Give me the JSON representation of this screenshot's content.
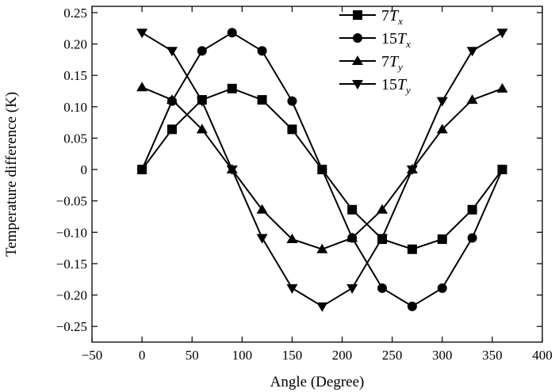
{
  "chart_data": {
    "type": "line",
    "title": "",
    "xlabel": "Angle (Degree)",
    "ylabel": "Temperature difference (K)",
    "xlim": [
      -50,
      400
    ],
    "ylim": [
      -0.275,
      0.26
    ],
    "x_ticks": [
      -50,
      0,
      50,
      100,
      150,
      200,
      250,
      300,
      350,
      400
    ],
    "y_ticks": [
      0.25,
      0.2,
      0.15,
      0.1,
      0.05,
      0,
      -0.05,
      -0.1,
      -0.15,
      -0.2,
      -0.25
    ],
    "x_tick_labels": [
      "−50",
      "0",
      "50",
      "100",
      "150",
      "200",
      "250",
      "300",
      "350",
      "400"
    ],
    "y_tick_labels": [
      "0.25",
      "0.20",
      "0.15",
      "0.10",
      "0.05",
      "0",
      "−0.05",
      "−0.10",
      "−0.15",
      "−0.20",
      "−0.25"
    ],
    "grid": false,
    "legend_position": "top-right",
    "x": [
      0,
      30,
      60,
      90,
      120,
      150,
      180,
      210,
      240,
      270,
      300,
      330,
      360
    ],
    "series": [
      {
        "name": "7Tx",
        "legend_main": "7",
        "legend_var": "T",
        "legend_sub": "x",
        "marker": "square",
        "values": [
          0,
          0.064,
          0.111,
          0.129,
          0.111,
          0.064,
          0,
          -0.064,
          -0.111,
          -0.127,
          -0.111,
          -0.064,
          0
        ]
      },
      {
        "name": "15Tx",
        "legend_main": "15",
        "legend_var": "T",
        "legend_sub": "x",
        "marker": "circle",
        "values": [
          0,
          0.109,
          0.189,
          0.218,
          0.189,
          0.109,
          0,
          -0.109,
          -0.189,
          -0.218,
          -0.189,
          -0.109,
          0
        ]
      },
      {
        "name": "7Ty",
        "legend_main": "7",
        "legend_var": "T",
        "legend_sub": "y",
        "marker": "triangle-up",
        "values": [
          0.131,
          0.111,
          0.064,
          0,
          -0.064,
          -0.111,
          -0.127,
          -0.109,
          -0.064,
          0,
          0.064,
          0.111,
          0.129
        ]
      },
      {
        "name": "15Ty",
        "legend_main": "15",
        "legend_var": "T",
        "legend_sub": "y",
        "marker": "triangle-down",
        "values": [
          0.218,
          0.189,
          0.109,
          0,
          -0.109,
          -0.189,
          -0.218,
          -0.189,
          -0.109,
          0,
          0.109,
          0.189,
          0.218
        ]
      }
    ],
    "colors": {
      "line": "#000000",
      "background": "#ffffff"
    }
  }
}
